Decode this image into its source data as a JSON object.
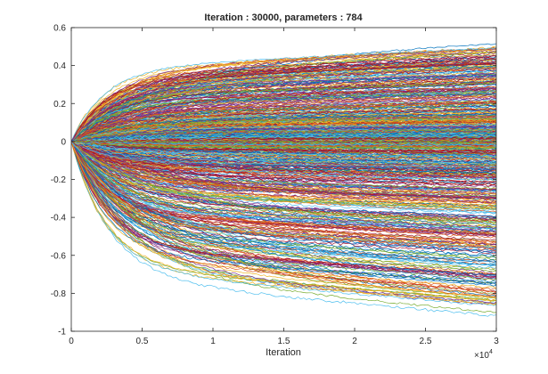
{
  "chart_data": {
    "type": "line",
    "title": "Iteration : 30000, parameters : 784",
    "xlabel": "Iteration",
    "ylabel": "",
    "x_exponent_label": "×10",
    "x_exponent_power": "4",
    "xlim": [
      0,
      3
    ],
    "ylim": [
      -1,
      0.6
    ],
    "xticks": [
      0,
      0.5,
      1,
      1.5,
      2,
      2.5,
      3
    ],
    "xtick_labels": [
      "0",
      "0.5",
      "1",
      "1.5",
      "2",
      "2.5",
      "3"
    ],
    "yticks": [
      -1,
      -0.8,
      -0.6,
      -0.4,
      -0.2,
      0,
      0.2,
      0.4,
      0.6
    ],
    "ytick_labels": [
      "-1",
      "-0.8",
      "-0.6",
      "-0.4",
      "-0.2",
      "0",
      "0.2",
      "0.4",
      "0.6"
    ],
    "grid": false,
    "series_count": 784,
    "series_colors": [
      "#0072bd",
      "#d95319",
      "#edb120",
      "#7e2f8e",
      "#77ac30",
      "#4dbeee",
      "#a2142f"
    ],
    "final_value_range": [
      -0.92,
      0.52
    ],
    "sample_final_values": [
      0.52,
      0.49,
      0.47,
      0.45,
      0.43,
      0.41,
      0.39,
      0.37,
      0.34,
      0.31,
      0.28,
      0.25,
      0.22,
      0.19,
      0.16,
      0.13,
      0.1,
      0.07,
      0.05,
      0.03,
      0.01,
      -0.01,
      -0.03,
      -0.05,
      -0.08,
      -0.11,
      -0.14,
      -0.17,
      -0.2,
      -0.23,
      -0.26,
      -0.3,
      -0.34,
      -0.38,
      -0.42,
      -0.46,
      -0.5,
      -0.54,
      -0.58,
      -0.62,
      -0.66,
      -0.7,
      -0.74,
      -0.78,
      -0.82,
      -0.86,
      -0.9,
      -0.92
    ]
  }
}
